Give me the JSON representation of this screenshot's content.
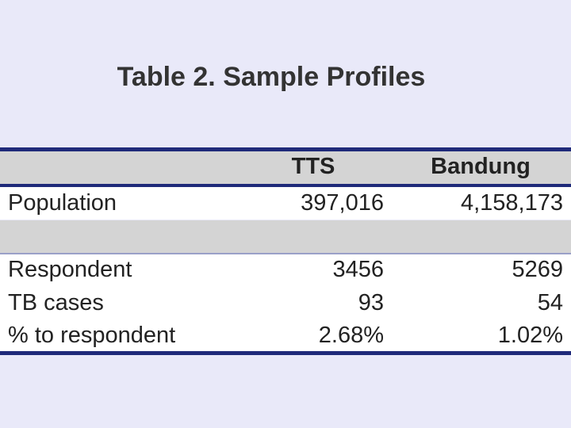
{
  "title": "Table 2. Sample Profiles",
  "table": {
    "columns": [
      "TTS",
      "Bandung"
    ],
    "top_rows": [
      [
        "Population",
        "397,016",
        "4,158,173"
      ]
    ],
    "rows": [
      [
        "Respondent",
        "3456",
        "5269"
      ],
      [
        "TB cases",
        "93",
        "54"
      ],
      [
        "% to respondent",
        "2.68%",
        "1.02%"
      ]
    ]
  }
}
